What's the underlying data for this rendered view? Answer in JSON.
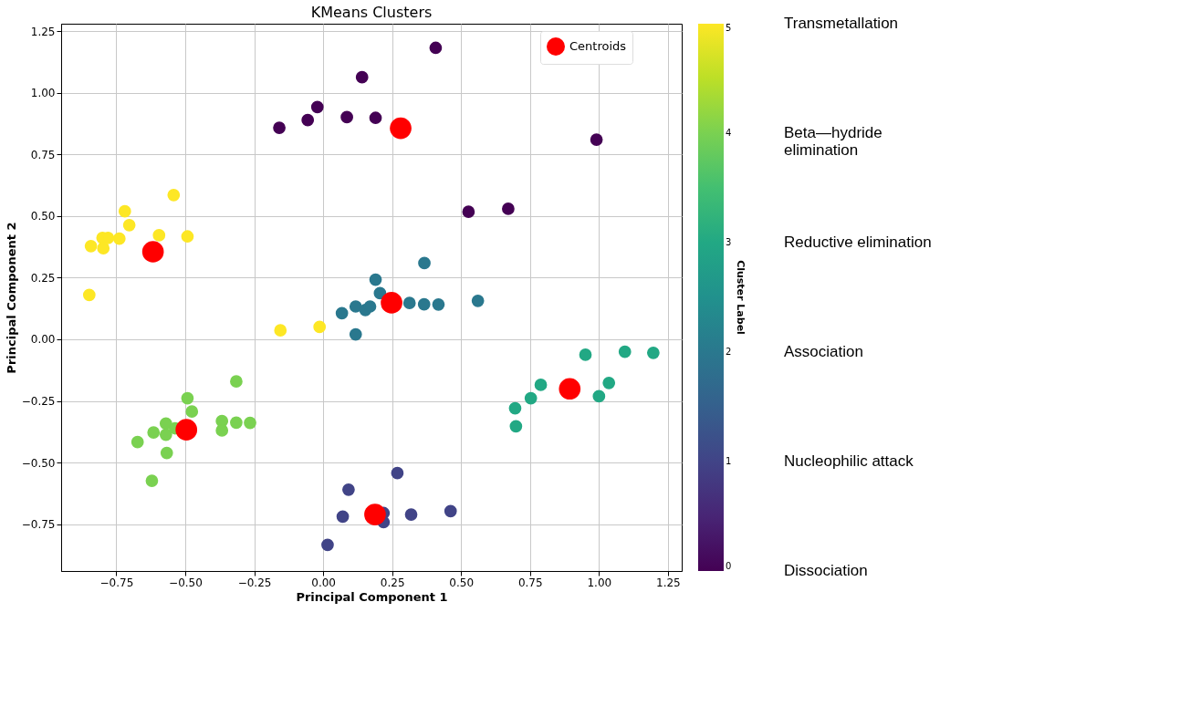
{
  "chart_data": {
    "type": "scatter",
    "title": "KMeans Clusters",
    "xlabel": "Principal Component 1",
    "ylabel": "Principal Component 2",
    "clabel": "Cluster Label",
    "xlim": [
      -0.95,
      1.3
    ],
    "ylim": [
      -0.94,
      1.28
    ],
    "xticks": [
      {
        "value": -0.75,
        "label": "−0.75"
      },
      {
        "value": -0.5,
        "label": "−0.50"
      },
      {
        "value": -0.25,
        "label": "−0.25"
      },
      {
        "value": 0,
        "label": "0.00"
      },
      {
        "value": 0.25,
        "label": "0.25"
      },
      {
        "value": 0.5,
        "label": "0.50"
      },
      {
        "value": 0.75,
        "label": "0.75"
      },
      {
        "value": 1,
        "label": "1.00"
      },
      {
        "value": 1.25,
        "label": "1.25"
      }
    ],
    "yticks": [
      {
        "value": -0.75,
        "label": "−0.75"
      },
      {
        "value": -0.5,
        "label": "−0.50"
      },
      {
        "value": -0.25,
        "label": "−0.25"
      },
      {
        "value": 0,
        "label": "0.00"
      },
      {
        "value": 0.25,
        "label": "0.25"
      },
      {
        "value": 0.5,
        "label": "0.50"
      },
      {
        "value": 0.75,
        "label": "0.75"
      },
      {
        "value": 1,
        "label": "1.00"
      },
      {
        "value": 1.25,
        "label": "1.25"
      }
    ],
    "clim": [
      0,
      5
    ],
    "cticks": [
      0,
      1,
      2,
      3,
      4,
      5
    ],
    "grid": true,
    "legend": "top right",
    "marker": "circle",
    "series": [
      {
        "x": [
          -0.159,
          -0.056,
          -0.021,
          0.086,
          0.141,
          0.19,
          0.408,
          0.991,
          0.527,
          0.671,
          -0.542,
          -0.719,
          -0.703,
          -0.8,
          -0.78,
          -0.739,
          -0.595,
          -0.492,
          -0.842,
          -0.797,
          -0.848,
          -0.155,
          -0.013,
          0.068,
          0.118,
          0.118,
          0.153,
          0.17,
          0.19,
          0.206,
          0.313,
          0.366,
          0.367,
          0.418,
          0.561,
          -0.315,
          -0.492,
          -0.476,
          -0.57,
          -0.615,
          -0.57,
          -0.673,
          -0.567,
          -0.621,
          -0.537,
          -0.367,
          -0.367,
          -0.315,
          -0.265,
          0.092,
          0.071,
          0.016,
          0.269,
          0.219,
          0.219,
          0.319,
          0.462,
          0.951,
          1.094,
          1.197,
          0.789,
          1.036,
          0.753,
          1.0,
          0.696,
          0.699
        ],
        "values": [
          0.858,
          0.889,
          0.942,
          0.901,
          1.063,
          0.898,
          1.182,
          0.81,
          0.517,
          0.529,
          0.585,
          0.519,
          0.463,
          0.411,
          0.411,
          0.408,
          0.422,
          0.417,
          0.378,
          0.369,
          0.18,
          0.036,
          0.05,
          0.106,
          0.133,
          0.02,
          0.119,
          0.133,
          0.242,
          0.187,
          0.147,
          0.142,
          0.309,
          0.141,
          0.156,
          -0.171,
          -0.239,
          -0.293,
          -0.342,
          -0.378,
          -0.387,
          -0.417,
          -0.461,
          -0.574,
          -0.361,
          -0.332,
          -0.37,
          -0.338,
          -0.339,
          -0.61,
          -0.719,
          -0.834,
          -0.543,
          -0.705,
          -0.742,
          -0.711,
          -0.697,
          -0.063,
          -0.051,
          -0.055,
          -0.185,
          -0.177,
          -0.239,
          -0.231,
          -0.28,
          -0.353
        ],
        "colors": [
          "#440154",
          "#440154",
          "#440154",
          "#440154",
          "#440154",
          "#440154",
          "#440154",
          "#440154",
          "#440154",
          "#440154",
          "#fde725",
          "#fde725",
          "#fde725",
          "#fde725",
          "#fde725",
          "#fde725",
          "#fde725",
          "#fde725",
          "#fde725",
          "#fde725",
          "#fde725",
          "#fde725",
          "#fde725",
          "#2a788e",
          "#2a788e",
          "#2a788e",
          "#2a788e",
          "#2a788e",
          "#2a788e",
          "#2a788e",
          "#2a788e",
          "#2a788e",
          "#2a788e",
          "#2a788e",
          "#2a788e",
          "#7ad151",
          "#7ad151",
          "#7ad151",
          "#7ad151",
          "#7ad151",
          "#7ad151",
          "#7ad151",
          "#7ad151",
          "#7ad151",
          "#7ad151",
          "#7ad151",
          "#7ad151",
          "#7ad151",
          "#7ad151",
          "#414487",
          "#414487",
          "#414487",
          "#414487",
          "#414487",
          "#414487",
          "#414487",
          "#414487",
          "#22a884",
          "#22a884",
          "#22a884",
          "#22a884",
          "#22a884",
          "#22a884",
          "#22a884",
          "#22a884",
          "#22a884"
        ],
        "cvalues": [
          0,
          0,
          0,
          0,
          0,
          0,
          0,
          0,
          0,
          0,
          5,
          5,
          5,
          5,
          5,
          5,
          5,
          5,
          5,
          5,
          5,
          5,
          5,
          2,
          2,
          2,
          2,
          2,
          2,
          2,
          2,
          2,
          2,
          2,
          2,
          4,
          4,
          4,
          4,
          4,
          4,
          4,
          4,
          4,
          4,
          4,
          4,
          4,
          4,
          1,
          1,
          1,
          1,
          1,
          1,
          1,
          1,
          3,
          3,
          3,
          3,
          3,
          3,
          3,
          3,
          3
        ]
      },
      {
        "name": "Centroids",
        "color": "#ff0000",
        "x": [
          0.281,
          -0.617,
          0.248,
          -0.496,
          0.188,
          0.894
        ],
        "values": [
          0.856,
          0.355,
          0.148,
          -0.367,
          -0.711,
          -0.201
        ]
      }
    ],
    "annotations": [
      "Transmetallation",
      "Beta—hydride\nelimination",
      "Reductive elimination",
      "Association",
      "Nucleophilic attack",
      "Dissociation"
    ]
  }
}
